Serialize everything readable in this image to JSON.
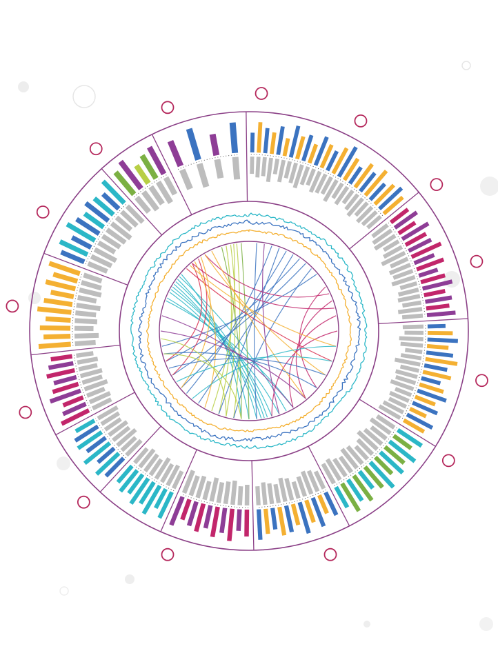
{
  "chart_data": {
    "type": "circos",
    "title": "",
    "grid": false,
    "legend": "none",
    "colors": {
      "frame": "#8a3f86",
      "marker": "#b5285c",
      "gray": "#bdbdbd",
      "blue": "#3b73c0",
      "orange": "#f4b032",
      "teal": "#2bb7c7",
      "magenta": "#c2266b",
      "purple": "#8e3d96",
      "green": "#7bb043",
      "lime": "#b8cf45",
      "red": "#d9304f"
    },
    "segments": [
      {
        "name": "seg-1",
        "start": 0,
        "end": 50.0,
        "palette": [
          "blue",
          "orange"
        ],
        "bars_up": [
          0.55,
          0.85,
          0.7,
          0.6,
          0.8,
          0.5,
          0.9,
          0.65,
          0.75,
          0.55,
          0.85,
          0.7,
          0.6,
          0.8,
          0.95,
          0.7,
          0.55,
          0.8,
          0.65,
          0.9,
          0.6,
          0.75,
          0.85,
          0.7
        ],
        "bars_down": [
          0.5,
          0.6,
          0.55,
          0.7,
          0.45,
          0.65,
          0.5,
          0.6,
          0.7,
          0.55,
          0.5,
          0.65,
          0.6,
          0.55,
          0.7,
          0.5,
          0.6,
          0.45,
          0.55,
          0.65,
          0.5,
          0.6,
          0.55,
          0.5
        ]
      },
      {
        "name": "seg-2",
        "start": 51.5,
        "end": 86.0,
        "palette": [
          "magenta",
          "purple"
        ],
        "bars_up": [
          0.6,
          0.75,
          0.55,
          0.85,
          0.65,
          0.7,
          0.9,
          0.6,
          0.8,
          0.55,
          0.7,
          0.85,
          0.6,
          0.75,
          0.65,
          0.8
        ],
        "bars_down": [
          0.55,
          0.65,
          0.7,
          0.5,
          0.6,
          0.75,
          0.55,
          0.65,
          0.6,
          0.7,
          0.5,
          0.6,
          0.65,
          0.55,
          0.7,
          0.6
        ]
      },
      {
        "name": "seg-3",
        "start": 87.5,
        "end": 121.0,
        "palette": [
          "blue",
          "orange"
        ],
        "bars_up": [
          0.5,
          0.7,
          0.85,
          0.6,
          0.75,
          0.9,
          0.65,
          0.8,
          0.55,
          0.7,
          0.85,
          0.6,
          0.75,
          0.5,
          0.8,
          0.65
        ],
        "bars_down": [
          0.6,
          0.55,
          0.7,
          0.65,
          0.5,
          0.6,
          0.75,
          0.55,
          0.65,
          0.6,
          0.7,
          0.5,
          0.6,
          0.55,
          0.65,
          0.7
        ]
      },
      {
        "name": "seg-4",
        "start": 122.5,
        "end": 152.0,
        "palette": [
          "teal",
          "green"
        ],
        "bars_up": [
          0.8,
          0.6,
          0.9,
          0.7,
          0.85,
          0.65,
          0.95,
          0.75,
          0.6,
          0.85,
          0.7,
          0.9,
          0.65
        ],
        "bars_down": [
          0.6,
          0.7,
          0.55,
          0.65,
          0.75,
          0.6,
          0.5,
          0.65,
          0.7,
          0.55,
          0.6,
          0.7,
          0.65
        ]
      },
      {
        "name": "seg-5",
        "start": 153.5,
        "end": 178.0,
        "palette": [
          "blue",
          "orange"
        ],
        "bars_up": [
          0.7,
          0.55,
          0.85,
          0.65,
          0.9,
          0.6,
          0.75,
          0.8,
          0.6,
          0.7,
          0.85
        ],
        "bars_down": [
          0.55,
          0.65,
          0.7,
          0.6,
          0.5,
          0.65,
          0.7,
          0.55,
          0.6,
          0.65,
          0.55
        ]
      },
      {
        "name": "seg-6",
        "start": 179.5,
        "end": 203.0,
        "palette": [
          "magenta",
          "purple"
        ],
        "bars_up": [
          0.75,
          0.6,
          0.9,
          0.7,
          0.85,
          0.65,
          0.8,
          0.7,
          0.6,
          0.85
        ],
        "bars_down": [
          0.6,
          0.55,
          0.7,
          0.65,
          0.6,
          0.7,
          0.55,
          0.65,
          0.6,
          0.7
        ]
      },
      {
        "name": "seg-7",
        "start": 204.5,
        "end": 222.0,
        "palette": [
          "teal"
        ],
        "bars_up": [
          0.8,
          0.6,
          0.9,
          0.7,
          0.85,
          0.65,
          0.75,
          0.6
        ],
        "bars_down": [
          0.55,
          0.65,
          0.6,
          0.7,
          0.55,
          0.6,
          0.65,
          0.55
        ]
      },
      {
        "name": "seg-8",
        "start": 223.5,
        "end": 241.0,
        "palette": [
          "blue",
          "teal"
        ],
        "bars_up": [
          0.7,
          0.85,
          0.6,
          0.9,
          0.65,
          0.8,
          0.75,
          0.6
        ],
        "bars_down": [
          0.6,
          0.55,
          0.7,
          0.6,
          0.65,
          0.55,
          0.6,
          0.65
        ]
      },
      {
        "name": "seg-9",
        "start": 242.5,
        "end": 263.0,
        "palette": [
          "magenta",
          "purple"
        ],
        "bars_up": [
          0.85,
          0.7,
          0.6,
          0.9,
          0.75,
          0.65,
          0.8,
          0.7,
          0.6
        ],
        "bars_down": [
          0.6,
          0.65,
          0.55,
          0.7,
          0.6,
          0.65,
          0.55,
          0.6,
          0.5
        ]
      },
      {
        "name": "seg-10",
        "start": 264.5,
        "end": 290.0,
        "palette": [
          "orange"
        ],
        "bars_up": [
          0.9,
          0.75,
          0.85,
          0.7,
          0.95,
          0.8,
          0.65,
          0.85,
          0.7,
          0.9
        ],
        "bars_down": [
          0.6,
          0.7,
          0.55,
          0.65,
          0.6,
          0.7,
          0.55,
          0.65,
          0.6,
          0.55
        ]
      },
      {
        "name": "seg-11",
        "start": 291.5,
        "end": 317.0,
        "palette": [
          "blue",
          "teal"
        ],
        "bars_up": [
          0.7,
          0.85,
          0.6,
          0.9,
          0.75,
          0.65,
          0.8,
          0.7,
          0.6,
          0.85
        ],
        "bars_down": [
          0.6,
          0.65,
          0.7,
          0.55,
          0.6,
          0.65,
          0.7,
          0.55,
          0.6,
          0.65
        ]
      },
      {
        "name": "seg-12",
        "start": 318.5,
        "end": 333.0,
        "palette": [
          "green",
          "purple",
          "lime"
        ],
        "bars_up": [
          0.8,
          0.95,
          0.6,
          0.75,
          0.85
        ],
        "bars_down": [
          0.55,
          0.65,
          0.6,
          0.7,
          0.55
        ]
      },
      {
        "name": "seg-13",
        "start": 334.5,
        "end": 358.5,
        "palette": [
          "purple",
          "blue"
        ],
        "bars_up": [
          0.75,
          0.9,
          0.6,
          0.85
        ],
        "bars_down": [
          0.6,
          0.7,
          0.55,
          0.65
        ]
      }
    ],
    "outer_markers": [
      {
        "angle": 3
      },
      {
        "angle": 28
      },
      {
        "angle": 52
      },
      {
        "angle": 73
      },
      {
        "angle": 102
      },
      {
        "angle": 123
      },
      {
        "angle": 160
      },
      {
        "angle": 200
      },
      {
        "angle": 224
      },
      {
        "angle": 250
      },
      {
        "angle": 276
      },
      {
        "angle": 300
      },
      {
        "angle": 320
      },
      {
        "angle": 340
      }
    ],
    "line_tracks": [
      {
        "name": "track-teal",
        "color": "teal",
        "level": 0.92,
        "amplitude": 0.06,
        "seed": 3
      },
      {
        "name": "track-blue",
        "color": "blue",
        "level": 0.62,
        "amplitude": 0.07,
        "seed": 11
      },
      {
        "name": "track-orange",
        "color": "orange",
        "level": 0.28,
        "amplitude": 0.05,
        "seed": 23
      }
    ],
    "links": [
      {
        "from": 300,
        "to": 170,
        "color": "teal"
      },
      {
        "from": 302,
        "to": 175,
        "color": "teal"
      },
      {
        "from": 304,
        "to": 168,
        "color": "teal"
      },
      {
        "from": 298,
        "to": 165,
        "color": "teal"
      },
      {
        "from": 296,
        "to": 172,
        "color": "teal"
      },
      {
        "from": 306,
        "to": 180,
        "color": "teal"
      },
      {
        "from": 292,
        "to": 160,
        "color": "teal"
      },
      {
        "from": 308,
        "to": 155,
        "color": "teal"
      },
      {
        "from": 290,
        "to": 150,
        "color": "teal"
      },
      {
        "from": 310,
        "to": 185,
        "color": "teal"
      },
      {
        "from": 345,
        "to": 200,
        "color": "lime"
      },
      {
        "from": 348,
        "to": 195,
        "color": "lime"
      },
      {
        "from": 350,
        "to": 205,
        "color": "lime"
      },
      {
        "from": 352,
        "to": 190,
        "color": "lime"
      },
      {
        "from": 342,
        "to": 185,
        "color": "green"
      },
      {
        "from": 355,
        "to": 180,
        "color": "green"
      },
      {
        "from": 20,
        "to": 200,
        "color": "blue"
      },
      {
        "from": 25,
        "to": 230,
        "color": "blue"
      },
      {
        "from": 30,
        "to": 215,
        "color": "blue"
      },
      {
        "from": 35,
        "to": 250,
        "color": "blue"
      },
      {
        "from": 40,
        "to": 240,
        "color": "blue"
      },
      {
        "from": 45,
        "to": 190,
        "color": "blue"
      },
      {
        "from": 50,
        "to": 260,
        "color": "blue"
      },
      {
        "from": 15,
        "to": 225,
        "color": "blue"
      },
      {
        "from": 60,
        "to": 130,
        "color": "magenta"
      },
      {
        "from": 70,
        "to": 140,
        "color": "magenta"
      },
      {
        "from": 80,
        "to": 150,
        "color": "magenta"
      },
      {
        "from": 90,
        "to": 165,
        "color": "magenta"
      },
      {
        "from": 65,
        "to": 330,
        "color": "magenta"
      },
      {
        "from": 75,
        "to": 320,
        "color": "magenta"
      },
      {
        "from": 320,
        "to": 250,
        "color": "red"
      },
      {
        "from": 325,
        "to": 240,
        "color": "red"
      },
      {
        "from": 315,
        "to": 110,
        "color": "red"
      },
      {
        "from": 330,
        "to": 120,
        "color": "orange"
      },
      {
        "from": 318,
        "to": 100,
        "color": "orange"
      },
      {
        "from": 322,
        "to": 210,
        "color": "orange"
      },
      {
        "from": 327,
        "to": 230,
        "color": "orange"
      },
      {
        "from": 335,
        "to": 140,
        "color": "orange"
      },
      {
        "from": 100,
        "to": 220,
        "color": "teal"
      },
      {
        "from": 110,
        "to": 235,
        "color": "teal"
      },
      {
        "from": 120,
        "to": 245,
        "color": "blue"
      },
      {
        "from": 130,
        "to": 255,
        "color": "blue"
      },
      {
        "from": 140,
        "to": 270,
        "color": "purple"
      },
      {
        "from": 150,
        "to": 280,
        "color": "purple"
      },
      {
        "from": 160,
        "to": 10,
        "color": "purple"
      },
      {
        "from": 175,
        "to": 5,
        "color": "blue"
      },
      {
        "from": 185,
        "to": 255,
        "color": "lime"
      },
      {
        "from": 195,
        "to": 265,
        "color": "lime"
      }
    ]
  }
}
